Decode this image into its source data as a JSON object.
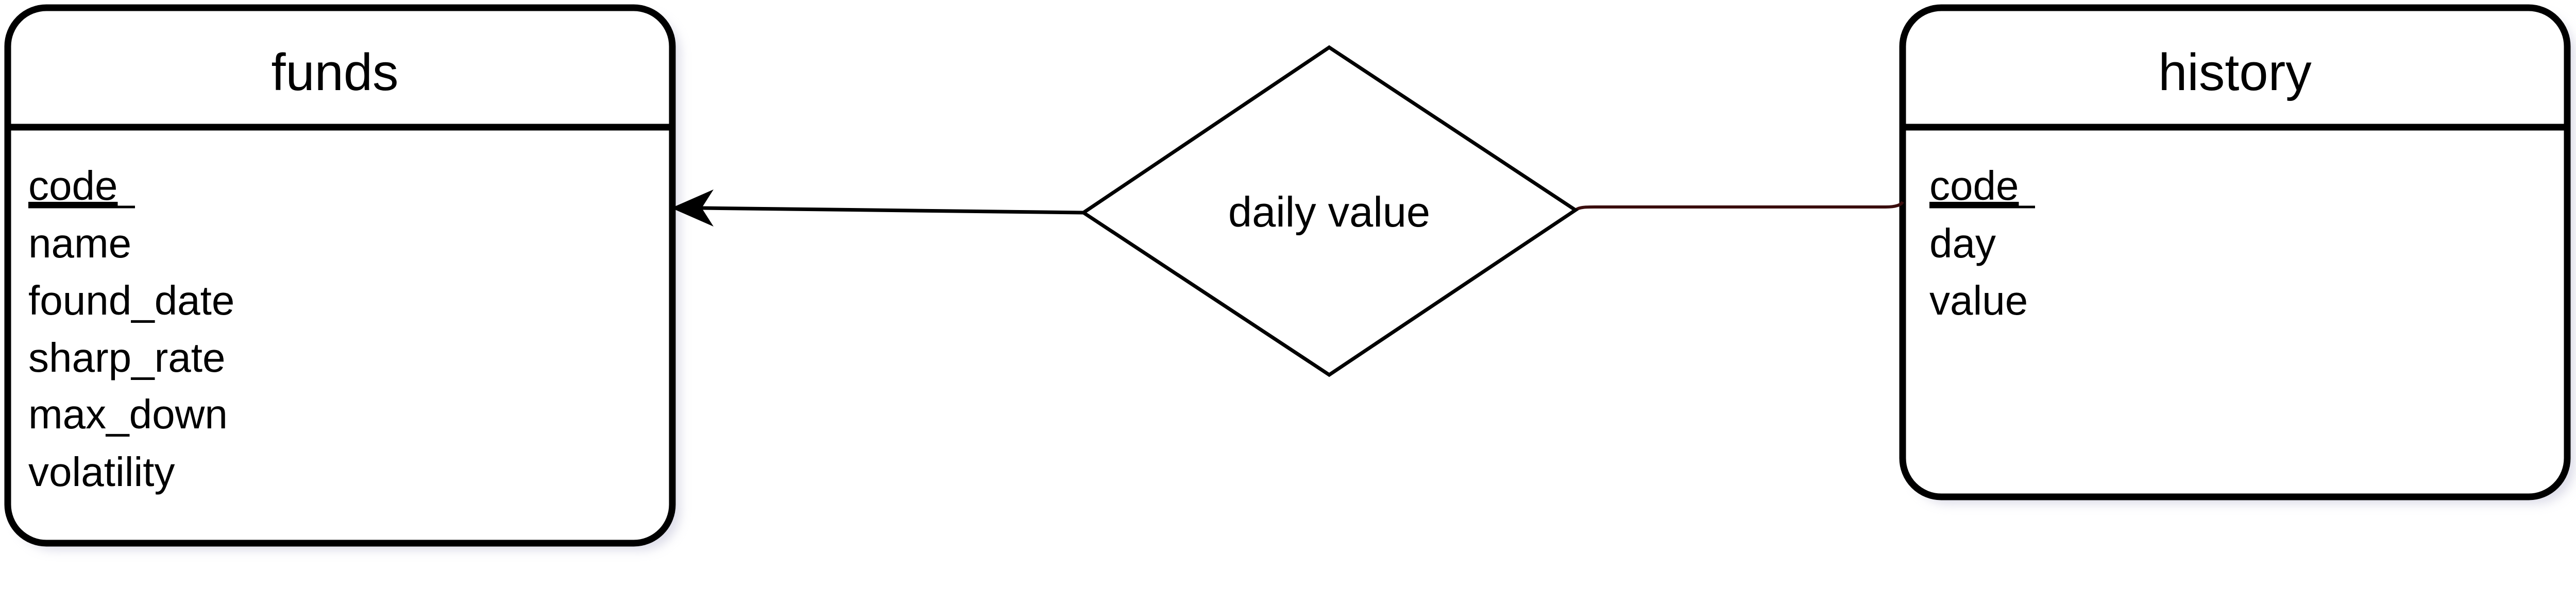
{
  "entities": {
    "funds": {
      "title": "funds",
      "attributes": [
        "code",
        "name",
        "found_date",
        "sharp_rate",
        "max_down",
        "volatility"
      ],
      "key_attributes": [
        "code"
      ]
    },
    "history": {
      "title": "history",
      "attributes": [
        "code",
        "day",
        "value"
      ],
      "key_attributes": [
        "code"
      ]
    }
  },
  "relationship": {
    "label": "daily value"
  },
  "colors": {
    "stroke": "#000000",
    "shadow": "#bfbfd6",
    "connector_right": "#3a0d0d"
  }
}
